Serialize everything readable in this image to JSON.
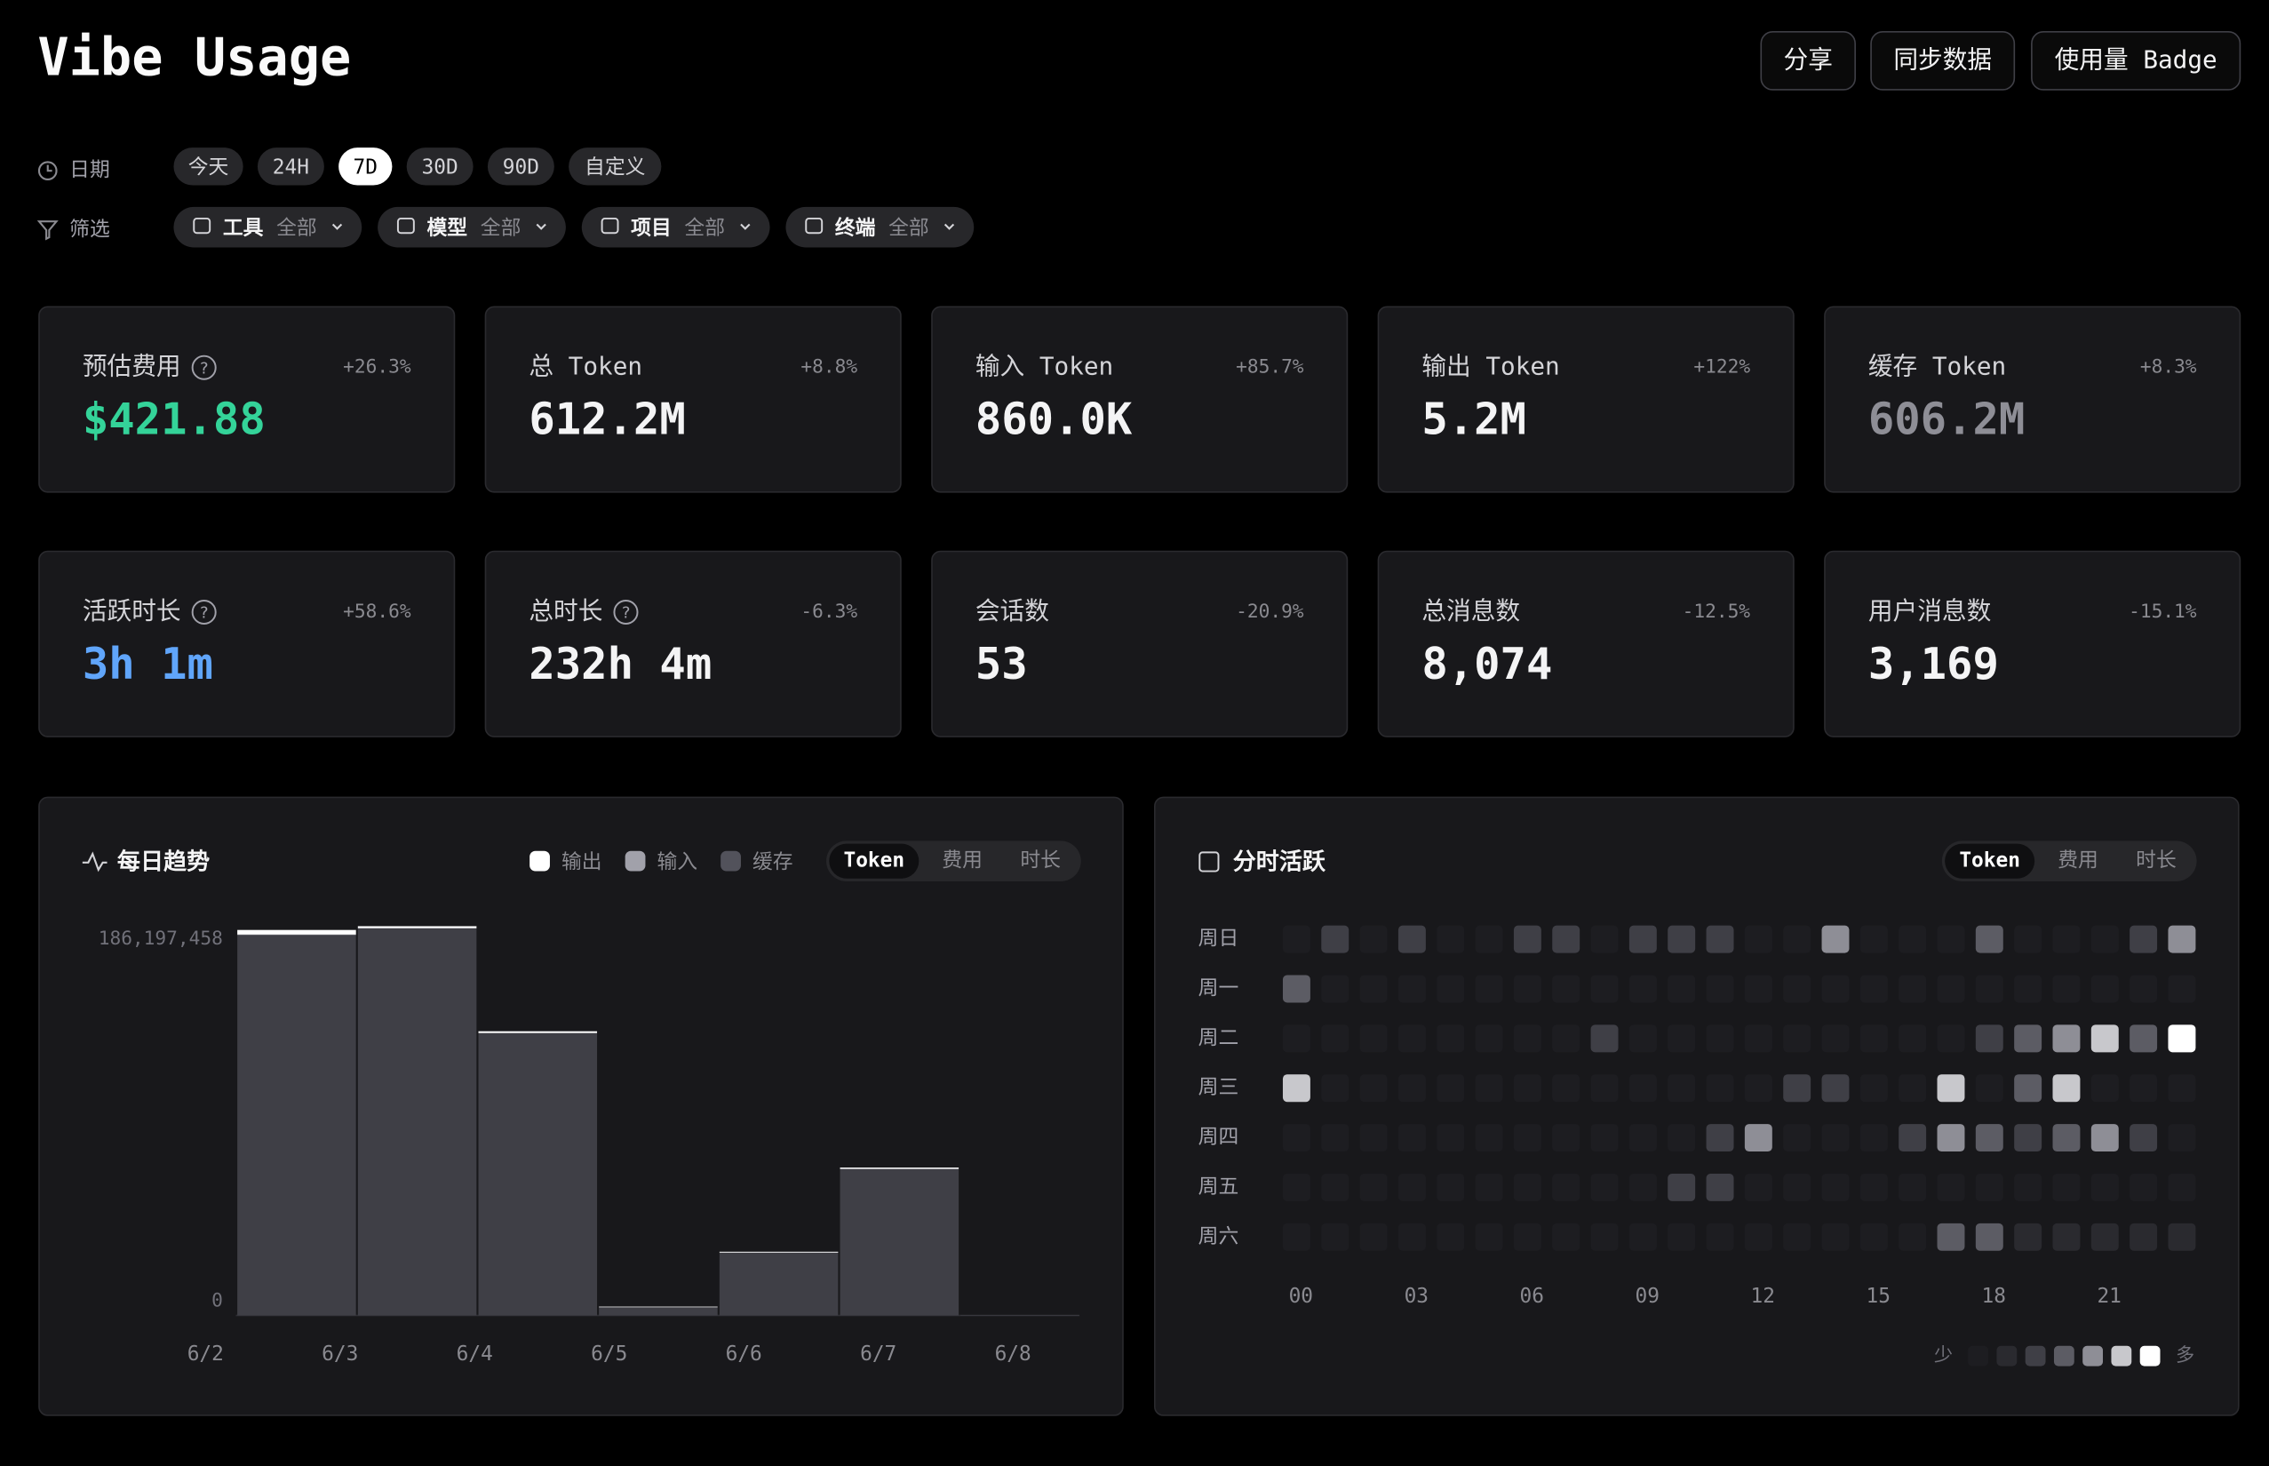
{
  "header": {
    "title": "Vibe Usage",
    "actions": [
      "分享",
      "同步数据",
      "使用量 Badge"
    ]
  },
  "date_filter": {
    "label": "日期",
    "options": [
      "今天",
      "24H",
      "7D",
      "30D",
      "90D",
      "自定义"
    ],
    "selected": 2
  },
  "filters": {
    "label": "筛选",
    "items": [
      {
        "name": "工具",
        "value": "全部"
      },
      {
        "name": "模型",
        "value": "全部"
      },
      {
        "name": "项目",
        "value": "全部"
      },
      {
        "name": "终端",
        "value": "全部"
      }
    ]
  },
  "stats": [
    {
      "label": "预估费用",
      "value": "$421.88",
      "change": "+26.3%",
      "help": true,
      "color": "#34d399"
    },
    {
      "label": "总 Token",
      "value": "612.2M",
      "change": "+8.8%",
      "help": false,
      "color": "#f4f4f5"
    },
    {
      "label": "输入 Token",
      "value": "860.0K",
      "change": "+85.7%",
      "help": false,
      "color": "#f4f4f5"
    },
    {
      "label": "输出 Token",
      "value": "5.2M",
      "change": "+122%",
      "help": false,
      "color": "#f4f4f5"
    },
    {
      "label": "缓存 Token",
      "value": "606.2M",
      "change": "+8.3%",
      "help": false,
      "color": "#8e8e96"
    },
    {
      "label": "活跃时长",
      "value": "3h 1m",
      "change": "+58.6%",
      "help": true,
      "color": "#60a5fa"
    },
    {
      "label": "总时长",
      "value": "232h 4m",
      "change": "-6.3%",
      "help": true,
      "color": "#f4f4f5"
    },
    {
      "label": "会话数",
      "value": "53",
      "change": "-20.9%",
      "help": false,
      "color": "#f4f4f5"
    },
    {
      "label": "总消息数",
      "value": "8,074",
      "change": "-12.5%",
      "help": false,
      "color": "#f4f4f5"
    },
    {
      "label": "用户消息数",
      "value": "3,169",
      "change": "-15.1%",
      "help": false,
      "color": "#f4f4f5"
    }
  ],
  "chart_data": [
    {
      "type": "bar",
      "stacked": true,
      "title": "每日趋势",
      "categories": [
        "6/2",
        "6/3",
        "6/4",
        "6/5",
        "6/6",
        "6/7",
        "6/8"
      ],
      "series": [
        {
          "name": "输出",
          "color": "#ffffff",
          "values": [
            2200000,
            900000,
            800000,
            300000,
            400000,
            600000,
            0
          ]
        },
        {
          "name": "输入",
          "color": "#a1a1aa",
          "values": [
            200000,
            200000,
            150000,
            50000,
            100000,
            150000,
            10000
          ]
        },
        {
          "name": "缓存",
          "color": "#3f3f46",
          "values": [
            182000000,
            185100000,
            135000000,
            3900000,
            30000000,
            70000000,
            200000
          ]
        }
      ],
      "ylim": [
        0,
        186197458
      ],
      "yticks": [
        0,
        {
          "value": 186197458,
          "label": "186,197,458"
        }
      ],
      "grid": false,
      "tabs": [
        "Token",
        "费用",
        "时长"
      ],
      "active_tab": 0
    },
    {
      "type": "heatmap",
      "title": "分时活跃",
      "rows": [
        "周日",
        "周一",
        "周二",
        "周三",
        "周四",
        "周五",
        "周六"
      ],
      "categories": [
        "00",
        null,
        null,
        "03",
        null,
        null,
        "06",
        null,
        null,
        "09",
        null,
        null,
        "12",
        null,
        null,
        "15",
        null,
        null,
        "18",
        null,
        null,
        "21",
        null,
        null
      ],
      "values": [
        [
          0,
          2,
          0,
          2,
          0,
          0,
          2,
          2,
          0,
          2,
          2,
          2,
          0,
          0,
          4,
          0,
          0,
          0,
          3,
          0,
          0,
          0,
          2,
          4
        ],
        [
          3,
          0,
          0,
          0,
          0,
          0,
          0,
          0,
          0,
          0,
          0,
          0,
          0,
          0,
          0,
          0,
          0,
          0,
          0,
          0,
          0,
          0,
          0,
          0
        ],
        [
          0,
          0,
          0,
          0,
          0,
          0,
          0,
          0,
          2,
          0,
          0,
          0,
          0,
          0,
          0,
          0,
          0,
          0,
          2,
          3,
          4,
          5,
          3,
          6
        ],
        [
          5,
          0,
          0,
          0,
          0,
          0,
          0,
          0,
          0,
          0,
          0,
          0,
          0,
          2,
          2,
          0,
          0,
          5,
          0,
          3,
          5,
          0,
          0,
          0
        ],
        [
          0,
          0,
          0,
          0,
          0,
          0,
          0,
          0,
          0,
          0,
          0,
          2,
          4,
          0,
          0,
          0,
          2,
          4,
          3,
          2,
          3,
          4,
          2,
          0
        ],
        [
          0,
          0,
          0,
          0,
          0,
          0,
          0,
          0,
          0,
          0,
          2,
          2,
          0,
          0,
          0,
          0,
          0,
          0,
          0,
          0,
          0,
          0,
          0,
          0
        ],
        [
          0,
          0,
          0,
          0,
          0,
          0,
          0,
          0,
          0,
          0,
          0,
          0,
          0,
          0,
          0,
          0,
          0,
          3,
          3,
          1,
          1,
          1,
          1,
          1
        ]
      ],
      "colors": [
        "#1d1d21",
        "#2a2a2f",
        "#3f3f46",
        "#5c5c64",
        "#8e8e96",
        "#c8c8cc",
        "#ffffff"
      ],
      "legend_labels": [
        "少",
        "多"
      ],
      "tabs": [
        "Token",
        "费用",
        "时长"
      ],
      "active_tab": 0
    }
  ]
}
